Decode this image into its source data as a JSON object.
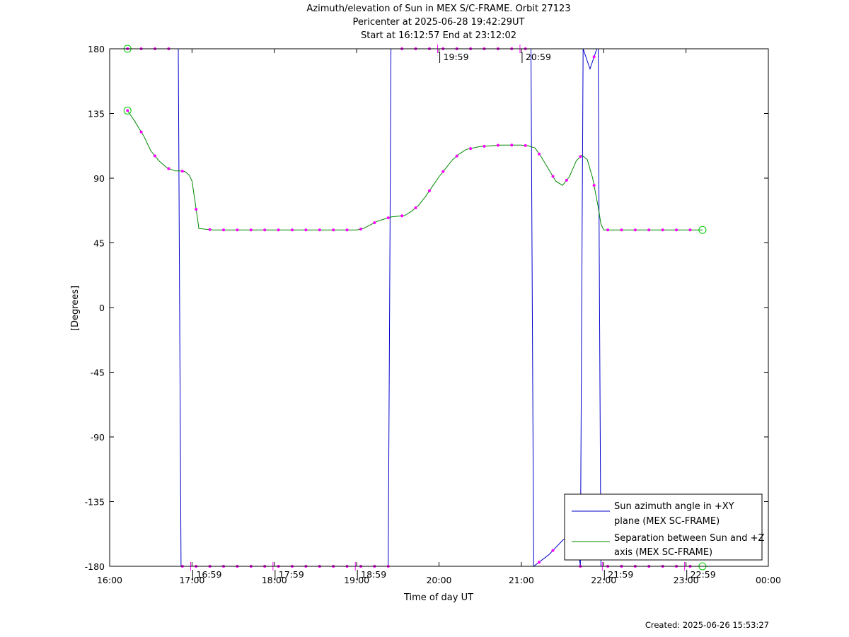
{
  "chart_data": {
    "type": "line",
    "title_lines": [
      "Azimuth/elevation of Sun in MEX S/C-FRAME.  Orbit 27123",
      "Pericenter at 2025-06-28 19:42:29UT",
      "Start at 16:12:57 End at 23:12:02"
    ],
    "xlabel": "Time of day UT",
    "ylabel": "[Degrees]",
    "xlim": [
      "16:00",
      "00:00"
    ],
    "ylim": [
      -180,
      180
    ],
    "x_ticks": [
      "16:00",
      "17:00",
      "18:00",
      "19:00",
      "20:00",
      "21:00",
      "22:00",
      "23:00",
      "00:00"
    ],
    "y_ticks": [
      180,
      135,
      90,
      45,
      0,
      -45,
      -90,
      -135,
      -180
    ],
    "grid": false,
    "legend_position": "bottom-right",
    "orbit_markers": [
      "16:59",
      "17:59",
      "18:59",
      "19:59",
      "20:59",
      "21:59",
      "22:59"
    ],
    "series": [
      {
        "name": "Sun azimuth angle in +XY plane (MEX SC-FRAME)",
        "color": "#0000cc",
        "x": [
          "16:13",
          "16:50",
          "16:51",
          "16:52",
          "17:00",
          "17:30",
          "18:00",
          "18:30",
          "19:00",
          "19:20",
          "19:23",
          "19:24",
          "19:25",
          "19:40",
          "20:00",
          "20:30",
          "20:58",
          "21:07",
          "21:08",
          "21:09",
          "21:20",
          "21:30",
          "21:40",
          "21:43",
          "21:44",
          "21:45",
          "21:50",
          "21:55",
          "21:56",
          "21:57",
          "21:58",
          "22:00",
          "22:30",
          "23:00",
          "23:12"
        ],
        "y": [
          180,
          180,
          0,
          -180,
          -180,
          -180,
          -180,
          -180,
          -180,
          -180,
          -180,
          0,
          180,
          180,
          180,
          180,
          180,
          180,
          0,
          -180,
          -172,
          -162,
          -155,
          -180,
          0,
          180,
          166,
          180,
          180,
          0,
          -180,
          -180,
          -180,
          -180,
          -180
        ]
      },
      {
        "name": "Separation between Sun and +Z axis (MEX SC-FRAME)",
        "color": "#008800",
        "x": [
          "16:13",
          "16:18",
          "16:25",
          "16:30",
          "16:36",
          "16:42",
          "16:48",
          "16:52",
          "16:55",
          "16:58",
          "17:00",
          "17:02",
          "17:05",
          "17:15",
          "17:30",
          "18:00",
          "18:30",
          "19:00",
          "19:05",
          "19:15",
          "19:25",
          "19:35",
          "19:40",
          "19:45",
          "19:50",
          "19:55",
          "20:00",
          "20:05",
          "20:10",
          "20:15",
          "20:20",
          "20:30",
          "20:45",
          "21:00",
          "21:05",
          "21:10",
          "21:15",
          "21:20",
          "21:25",
          "21:30",
          "21:35",
          "21:40",
          "21:44",
          "21:48",
          "21:52",
          "21:56",
          "21:58",
          "22:00",
          "22:30",
          "23:00",
          "23:12"
        ],
        "y": [
          137,
          130,
          119,
          109,
          102,
          97,
          95,
          95,
          94.5,
          92,
          88,
          75,
          55,
          54,
          54,
          54,
          54,
          54,
          55,
          60,
          63,
          64,
          67,
          71,
          77,
          84,
          91,
          97,
          103,
          107,
          110,
          112,
          113,
          113,
          112.5,
          111,
          104,
          96,
          88,
          85,
          91,
          102,
          106,
          103,
          90,
          70,
          58,
          54,
          54,
          54,
          54
        ]
      }
    ]
  },
  "created": "Created: 2025-06-26 15:53:27"
}
